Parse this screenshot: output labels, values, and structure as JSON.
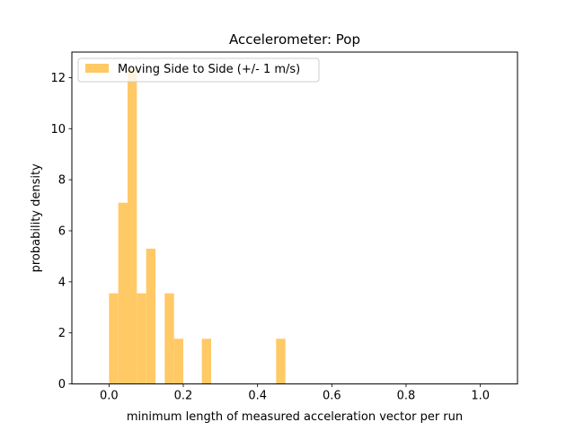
{
  "chart_data": {
    "type": "bar",
    "title": "Accelerometer: Pop",
    "xlabel": "minimum length of measured acceleration vector per run",
    "ylabel": "probability density",
    "xlim": [
      -0.1,
      1.1
    ],
    "ylim": [
      0,
      13
    ],
    "x_ticks": [
      0.0,
      0.2,
      0.4,
      0.6,
      0.8,
      1.0
    ],
    "x_tick_labels": [
      "0.0",
      "0.2",
      "0.4",
      "0.6",
      "0.8",
      "1.0"
    ],
    "y_ticks": [
      0,
      2,
      4,
      6,
      8,
      10,
      12
    ],
    "y_tick_labels": [
      "0",
      "2",
      "4",
      "6",
      "8",
      "10",
      "12"
    ],
    "bin_width": 0.025,
    "bins": [
      {
        "x0": 0.0,
        "x1": 0.025,
        "density": 3.55
      },
      {
        "x0": 0.025,
        "x1": 0.05,
        "density": 7.1
      },
      {
        "x0": 0.05,
        "x1": 0.075,
        "density": 12.4
      },
      {
        "x0": 0.075,
        "x1": 0.1,
        "density": 3.55
      },
      {
        "x0": 0.1,
        "x1": 0.125,
        "density": 5.3
      },
      {
        "x0": 0.15,
        "x1": 0.175,
        "density": 3.55
      },
      {
        "x0": 0.175,
        "x1": 0.2,
        "density": 1.77
      },
      {
        "x0": 0.25,
        "x1": 0.275,
        "density": 1.77
      },
      {
        "x0": 0.45,
        "x1": 0.475,
        "density": 1.77
      }
    ],
    "series": [
      {
        "name": "Moving Side to Side (+/- 1 m/s)",
        "color": "#ffc966"
      }
    ],
    "legend_position": "top-left",
    "grid": false
  }
}
